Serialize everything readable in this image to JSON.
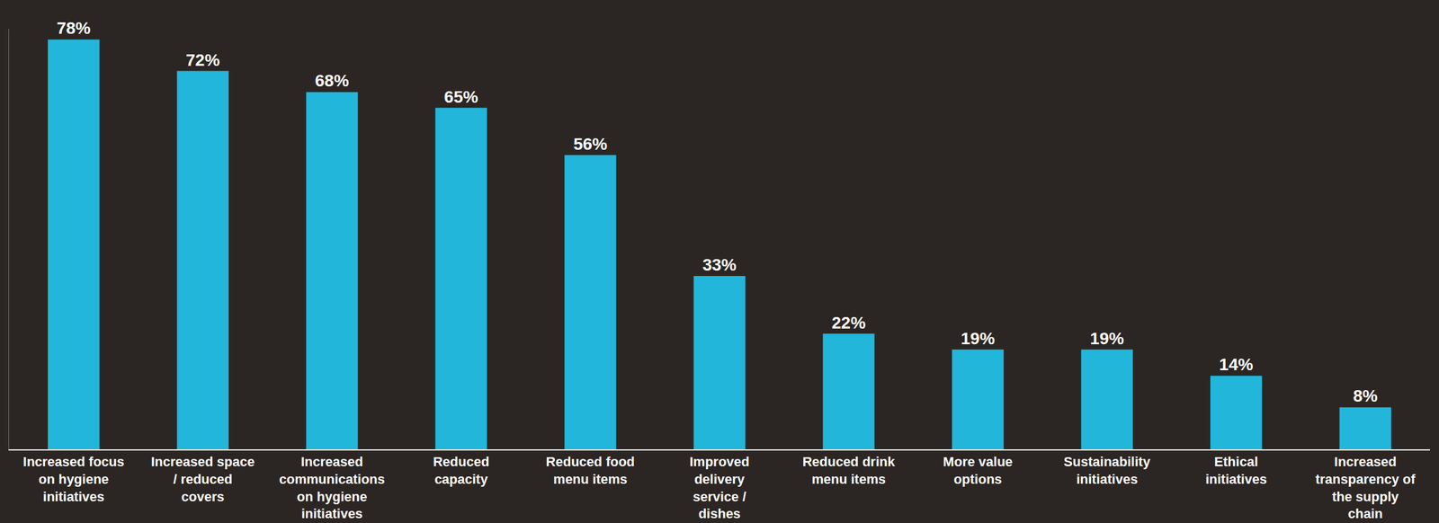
{
  "chart_data": {
    "type": "bar",
    "categories": [
      "Increased focus on hygiene initiatives",
      "Increased space / reduced covers",
      "Increased communications on hygiene initiatives",
      "Reduced capacity",
      "Reduced food menu items",
      "Improved delivery service / dishes",
      "Reduced drink menu items",
      "More value options",
      "Sustainability initiatives",
      "Ethical initiatives",
      "Increased transparency of the supply chain"
    ],
    "values": [
      78,
      72,
      68,
      65,
      56,
      33,
      22,
      19,
      19,
      14,
      8
    ],
    "value_labels": [
      "78%",
      "72%",
      "68%",
      "65%",
      "56%",
      "33%",
      "22%",
      "19%",
      "19%",
      "14%",
      "8%"
    ],
    "color": "#22b6da",
    "ylim": [
      0,
      80
    ],
    "grid": false,
    "data_labels": true,
    "tick_labels": "x"
  }
}
